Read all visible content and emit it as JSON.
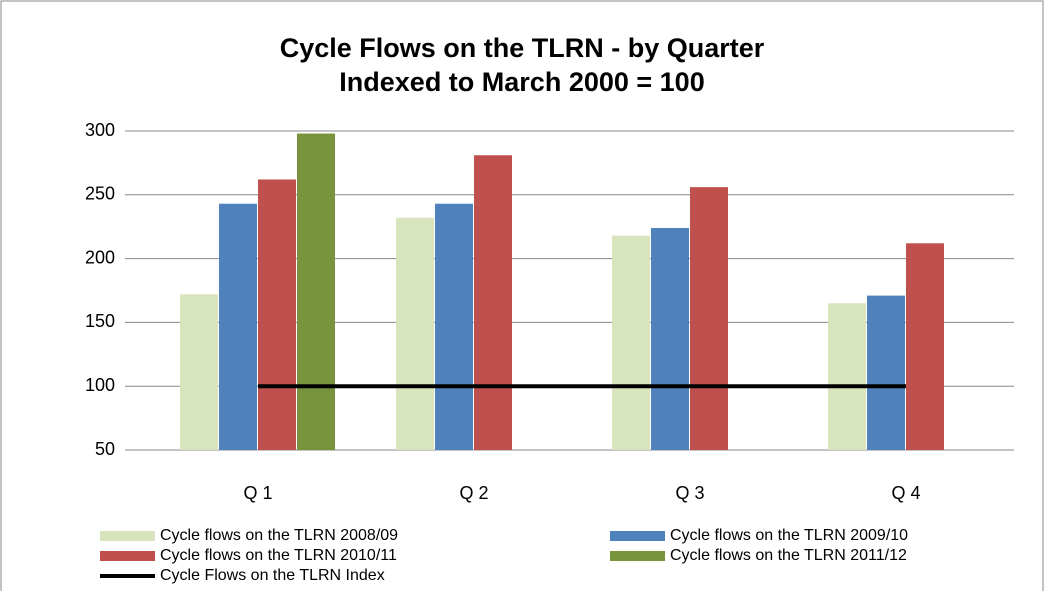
{
  "chart_data": {
    "type": "bar",
    "title": [
      "Cycle Flows on the TLRN - by Quarter",
      "Indexed to March 2000 = 100"
    ],
    "categories": [
      "Q 1",
      "Q 2",
      "Q 3",
      "Q 4"
    ],
    "series": [
      {
        "name": "Cycle flows on the TLRN 2008/09",
        "color": "#d7e4bd",
        "values": [
          172,
          232,
          218,
          165
        ]
      },
      {
        "name": "Cycle flows on the TLRN 2009/10",
        "color": "#4f81bd",
        "values": [
          243,
          243,
          224,
          171
        ]
      },
      {
        "name": "Cycle flows on the TLRN 2010/11",
        "color": "#c0504d",
        "values": [
          262,
          281,
          256,
          212
        ]
      },
      {
        "name": "Cycle flows on the TLRN 2011/12",
        "color": "#77933c",
        "values": [
          298,
          null,
          null,
          null
        ]
      },
      {
        "name": "Cycle Flows on the TLRN Index",
        "color": "#000000",
        "type": "line",
        "values": [
          100,
          100,
          100,
          100
        ]
      }
    ],
    "ylim": [
      50,
      300
    ],
    "yticks": [
      50,
      100,
      150,
      200,
      250,
      300
    ],
    "grid": true
  }
}
